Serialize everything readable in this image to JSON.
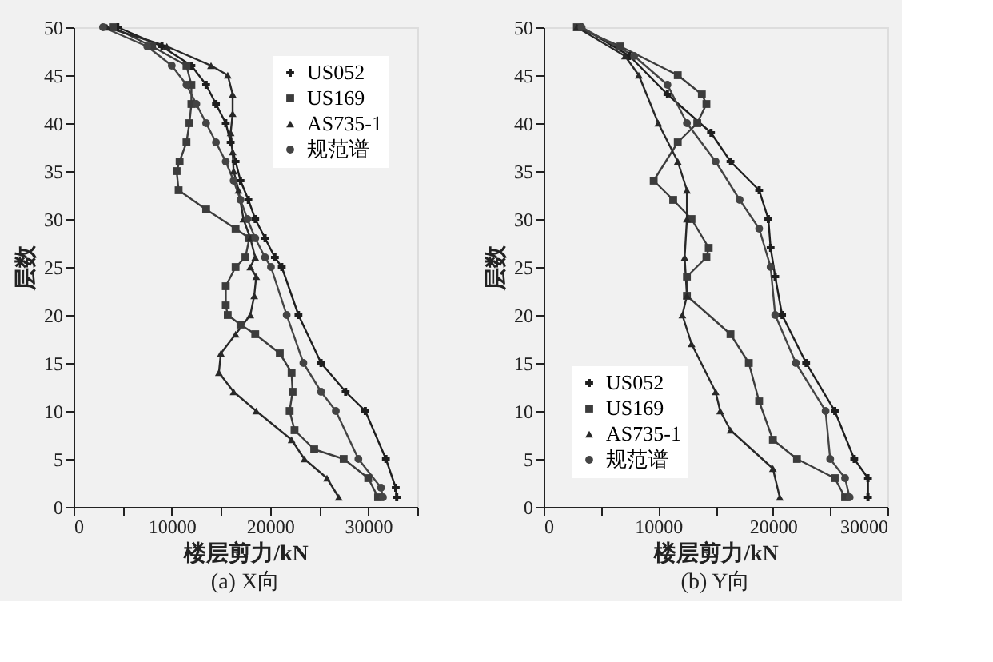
{
  "chart_data": [
    {
      "type": "line",
      "title": "(a) X向",
      "xlabel": "楼层剪力/kN",
      "ylabel": "层数",
      "orientation": "horizontal",
      "legend": "top right",
      "grid": false,
      "xlim": [
        0,
        35000
      ],
      "xticks": [
        0,
        {
          "value": 5000,
          "label": null
        },
        10000,
        {
          "value": 15000,
          "label": null
        },
        20000,
        {
          "value": 25000,
          "label": null
        },
        30000,
        {
          "value": 35000,
          "label": null
        }
      ],
      "ylim": [
        0,
        50
      ],
      "yticks": [
        0,
        5,
        10,
        15,
        20,
        25,
        30,
        35,
        40,
        45,
        50
      ],
      "series": [
        {
          "name": "US052",
          "color": "#1e1e1e",
          "marker": "cross",
          "x": [
            50,
            48,
            46,
            44,
            42,
            40,
            38,
            36,
            34,
            32,
            30,
            28,
            26,
            25,
            20,
            15,
            12,
            10,
            5,
            2,
            1
          ],
          "values": [
            4500,
            9000,
            12000,
            13500,
            14500,
            15500,
            16000,
            16500,
            17000,
            17800,
            18500,
            19500,
            20500,
            21200,
            22900,
            25200,
            27700,
            29700,
            31800,
            32800,
            32900
          ]
        },
        {
          "name": "US169",
          "color": "#3c3c3c",
          "marker": "square",
          "x": [
            50,
            48,
            46,
            44,
            42,
            40,
            38,
            36,
            35,
            33,
            31,
            29,
            28,
            26,
            25,
            23,
            21,
            20,
            19,
            18,
            16,
            14,
            12,
            10,
            8,
            6,
            5,
            3,
            1
          ],
          "values": [
            4000,
            8000,
            11500,
            12000,
            12000,
            11800,
            11500,
            10800,
            10500,
            10700,
            13500,
            16500,
            17900,
            17500,
            16500,
            15500,
            15500,
            15700,
            17000,
            18500,
            21000,
            22200,
            22300,
            22000,
            22500,
            24500,
            27500,
            30000,
            31000
          ]
        },
        {
          "name": "AS735-1",
          "color": "#282828",
          "marker": "triangle",
          "x": [
            50,
            48,
            46,
            45,
            43,
            41,
            39,
            37,
            35,
            33,
            30,
            28,
            26,
            25,
            24,
            22,
            20,
            18,
            16,
            14,
            12,
            10,
            7,
            5,
            3,
            1
          ],
          "values": [
            3400,
            9500,
            14000,
            15700,
            16200,
            16200,
            16000,
            16200,
            16300,
            16800,
            17300,
            18000,
            18500,
            18000,
            18600,
            18400,
            18000,
            16500,
            15000,
            14800,
            16300,
            18600,
            22200,
            23500,
            25800,
            27000
          ]
        },
        {
          "name": "规范谱",
          "color": "#444444",
          "marker": "circle",
          "x": [
            50,
            48,
            46,
            44,
            42,
            40,
            38,
            36,
            34,
            32,
            30,
            28,
            26,
            25,
            20,
            15,
            12,
            10,
            5,
            2,
            1
          ],
          "values": [
            3000,
            7500,
            10000,
            11500,
            12500,
            13500,
            14500,
            15500,
            16300,
            17000,
            17700,
            18500,
            19500,
            20100,
            21700,
            23400,
            25200,
            26700,
            29000,
            31300,
            31500
          ]
        }
      ]
    },
    {
      "type": "line",
      "title": "(b) Y向",
      "xlabel": "楼层剪力/kN",
      "ylabel": "层数",
      "orientation": "horizontal",
      "legend": "bottom left",
      "grid": false,
      "xlim": [
        0,
        30000
      ],
      "xticks": [
        0,
        {
          "value": 5000,
          "label": null
        },
        10000,
        {
          "value": 15000,
          "label": null
        },
        20000,
        {
          "value": 25000,
          "label": null
        },
        30000
      ],
      "ylim": [
        0,
        50
      ],
      "yticks": [
        0,
        5,
        10,
        15,
        20,
        25,
        30,
        35,
        40,
        45,
        50
      ],
      "series": [
        {
          "name": "US052",
          "color": "#1e1e1e",
          "marker": "cross",
          "x": [
            50,
            47,
            43,
            39,
            36,
            33,
            30,
            27,
            24,
            20,
            15,
            10,
            5,
            3,
            1
          ],
          "values": [
            3300,
            7500,
            10800,
            14600,
            16300,
            18800,
            19600,
            19800,
            20200,
            20800,
            22900,
            25400,
            27100,
            28300,
            28300
          ]
        },
        {
          "name": "US169",
          "color": "#3c3c3c",
          "marker": "square",
          "x": [
            50,
            48,
            45,
            43,
            42,
            40,
            38,
            34,
            32,
            30,
            27,
            26,
            24,
            22,
            18,
            15,
            11,
            7,
            5,
            3,
            1
          ],
          "values": [
            2900,
            6700,
            11700,
            13800,
            14200,
            13400,
            11700,
            9600,
            11300,
            12900,
            14400,
            14200,
            12500,
            12500,
            16300,
            17900,
            18800,
            20000,
            22100,
            25400,
            26300
          ]
        },
        {
          "name": "AS735-1",
          "color": "#282828",
          "marker": "triangle",
          "x": [
            50,
            47,
            45,
            40,
            36,
            33,
            30,
            26,
            22,
            20,
            17,
            12,
            10,
            8,
            4,
            1
          ],
          "values": [
            2900,
            7100,
            8300,
            10000,
            11700,
            12500,
            12500,
            12300,
            12500,
            12100,
            12900,
            15000,
            15400,
            16300,
            20000,
            20600
          ]
        },
        {
          "name": "规范谱",
          "color": "#444444",
          "marker": "circle",
          "x": [
            50,
            47,
            44,
            40,
            36,
            32,
            29,
            25,
            20,
            15,
            10,
            5,
            3,
            1
          ],
          "values": [
            3300,
            7900,
            10800,
            12500,
            15000,
            17100,
            18800,
            19800,
            20200,
            22000,
            24600,
            25000,
            26300,
            26700
          ]
        }
      ]
    }
  ]
}
